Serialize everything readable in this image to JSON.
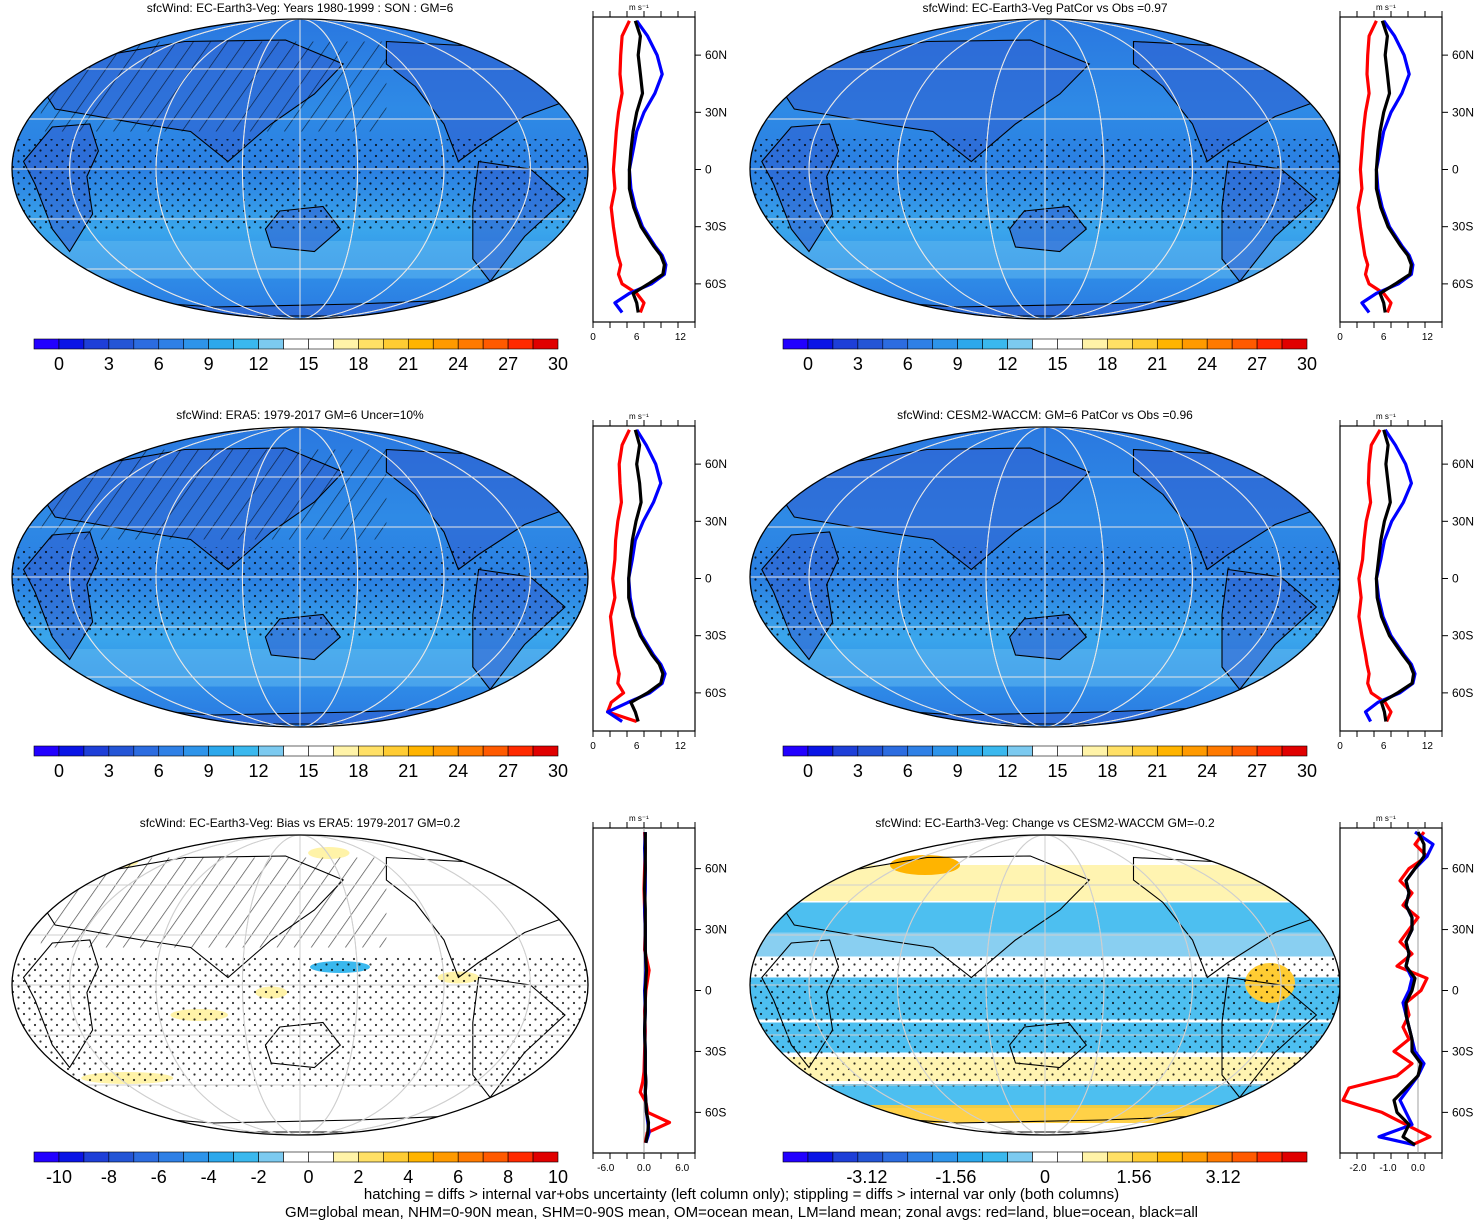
{
  "footer": {
    "line1": "hatching = diffs > internal var+obs uncertainty (left column only); stippling = diffs > internal var only (both columns)",
    "line2": "GM=global mean, NHM=0-90N mean, SHM=0-90S mean, OM=ocean mean, LM=land mean; zonal avgs: red=land, blue=ocean, black=all"
  },
  "colors": {
    "land": "#ff0000",
    "ocean": "#0000ff",
    "all": "#000000",
    "map_base": "#2e8de8",
    "coast": "#000000",
    "grid": "#dddddd"
  },
  "chart_data": [
    {
      "type": "heatmap",
      "title": "sfcWind: EC-Earth3-Veg: Years 1980-1999 : SON : GM=6",
      "colorbar": {
        "ticks": [
          "0",
          "3",
          "6",
          "9",
          "12",
          "15",
          "18",
          "21",
          "24",
          "27",
          "30"
        ],
        "palette": [
          "#2200ff",
          "#0a14e6",
          "#1e3fd8",
          "#2455d6",
          "#2c6ce0",
          "#2f80e6",
          "#2e94ea",
          "#2ca8ec",
          "#3ab8ee",
          "#7ccaf0",
          "#ffffff",
          "#ffffff",
          "#fff3a8",
          "#ffe066",
          "#ffcc33",
          "#ffb400",
          "#ff9a00",
          "#ff7a00",
          "#ff5a00",
          "#ff2a00",
          "#e00000"
        ]
      },
      "zonal": {
        "unit": "m s-1",
        "xticks": [
          "0",
          "6",
          "12"
        ],
        "xlim": [
          0,
          14
        ],
        "yticks": [
          "60N",
          "30N",
          "0",
          "30S",
          "60S"
        ],
        "ylim": [
          -80,
          80
        ],
        "lat": [
          78,
          70,
          60,
          50,
          40,
          30,
          20,
          10,
          0,
          -10,
          -20,
          -30,
          -40,
          -45,
          -50,
          -55,
          -60,
          -65,
          -70,
          -75
        ],
        "land": [
          5,
          4,
          3.8,
          3.7,
          4,
          3.5,
          3.2,
          3,
          2.8,
          3,
          2.5,
          2.8,
          3.2,
          3.4,
          3.8,
          3.5,
          4,
          6,
          7,
          6.5
        ],
        "ocean": [
          6,
          7.5,
          8.8,
          9.5,
          8.5,
          7,
          6,
          5.5,
          5,
          5.2,
          5.8,
          6.8,
          8.5,
          9.5,
          10,
          9.8,
          8,
          5,
          3,
          4
        ],
        "all": [
          5.8,
          6.5,
          6.2,
          6.5,
          6.8,
          6,
          5.5,
          5.2,
          5,
          5,
          5.6,
          6.6,
          8.3,
          9.3,
          9.8,
          9.6,
          7.6,
          5.5,
          6,
          6.2
        ]
      }
    },
    {
      "type": "heatmap",
      "title": "sfcWind: EC-Earth3-Veg PatCor vs Obs =0.97",
      "colorbar": {
        "ticks": [
          "0",
          "3",
          "6",
          "9",
          "12",
          "15",
          "18",
          "21",
          "24",
          "27",
          "30"
        ],
        "palette": [
          "#2200ff",
          "#0a14e6",
          "#1e3fd8",
          "#2455d6",
          "#2c6ce0",
          "#2f80e6",
          "#2e94ea",
          "#2ca8ec",
          "#3ab8ee",
          "#7ccaf0",
          "#ffffff",
          "#ffffff",
          "#fff3a8",
          "#ffe066",
          "#ffcc33",
          "#ffb400",
          "#ff9a00",
          "#ff7a00",
          "#ff5a00",
          "#ff2a00",
          "#e00000"
        ]
      },
      "zonal": {
        "unit": "m s-1",
        "xticks": [
          "0",
          "6",
          "12"
        ],
        "xlim": [
          0,
          14
        ],
        "yticks": [
          "60N",
          "30N",
          "0",
          "30S",
          "60S"
        ],
        "ylim": [
          -80,
          80
        ],
        "lat": [
          78,
          70,
          60,
          50,
          40,
          30,
          20,
          10,
          0,
          -10,
          -20,
          -30,
          -40,
          -45,
          -50,
          -55,
          -60,
          -65,
          -70,
          -75
        ],
        "land": [
          5,
          4,
          3.8,
          3.7,
          4,
          3.5,
          3.2,
          3,
          2.8,
          3,
          2.5,
          2.8,
          3.2,
          3.4,
          3.8,
          3.5,
          4,
          6,
          7,
          6.5
        ],
        "ocean": [
          6,
          7.5,
          8.8,
          9.5,
          8.5,
          7,
          6,
          5.5,
          5,
          5.2,
          5.8,
          6.8,
          8.5,
          9.5,
          10,
          9.8,
          8,
          5,
          3,
          4
        ],
        "all": [
          5.8,
          6.5,
          6.2,
          6.5,
          6.8,
          6,
          5.5,
          5.2,
          5,
          5,
          5.6,
          6.6,
          8.3,
          9.3,
          9.8,
          9.6,
          7.6,
          5.5,
          6,
          6.2
        ]
      }
    },
    {
      "type": "heatmap",
      "title": "sfcWind: ERA5: 1979-2017 GM=6 Uncer=10%",
      "colorbar": {
        "ticks": [
          "0",
          "3",
          "6",
          "9",
          "12",
          "15",
          "18",
          "21",
          "24",
          "27",
          "30"
        ],
        "palette": [
          "#2200ff",
          "#0a14e6",
          "#1e3fd8",
          "#2455d6",
          "#2c6ce0",
          "#2f80e6",
          "#2e94ea",
          "#2ca8ec",
          "#3ab8ee",
          "#7ccaf0",
          "#ffffff",
          "#ffffff",
          "#fff3a8",
          "#ffe066",
          "#ffcc33",
          "#ffb400",
          "#ff9a00",
          "#ff7a00",
          "#ff5a00",
          "#ff2a00",
          "#e00000"
        ]
      },
      "zonal": {
        "unit": "m s-1",
        "xticks": [
          "0",
          "6",
          "12"
        ],
        "xlim": [
          0,
          14
        ],
        "yticks": [
          "60N",
          "30N",
          "0",
          "30S",
          "60S"
        ],
        "ylim": [
          -80,
          80
        ],
        "lat": [
          78,
          70,
          60,
          50,
          40,
          30,
          20,
          10,
          0,
          -10,
          -20,
          -30,
          -40,
          -45,
          -50,
          -55,
          -60,
          -65,
          -70,
          -75
        ],
        "land": [
          5,
          4,
          3.6,
          3.7,
          3.9,
          3.4,
          3.1,
          3,
          2.7,
          3,
          2.4,
          2.7,
          3,
          3.3,
          3.6,
          3.4,
          4.2,
          2.5,
          2,
          6
        ],
        "ocean": [
          6,
          7.3,
          8.6,
          9.3,
          8.3,
          6.9,
          5.8,
          5.4,
          4.9,
          5.1,
          5.6,
          6.7,
          8.3,
          9.3,
          9.9,
          9.5,
          7.8,
          4.8,
          2,
          4
        ],
        "all": [
          5.8,
          6.4,
          6,
          6.4,
          6.6,
          5.9,
          5.4,
          5.1,
          4.9,
          4.9,
          5.5,
          6.5,
          8.1,
          9.1,
          9.6,
          9.3,
          7.5,
          5.2,
          5.8,
          6.2
        ]
      }
    },
    {
      "type": "heatmap",
      "title": "sfcWind: CESM2-WACCM: GM=6 PatCor vs Obs =0.96",
      "colorbar": {
        "ticks": [
          "0",
          "3",
          "6",
          "9",
          "12",
          "15",
          "18",
          "21",
          "24",
          "27",
          "30"
        ],
        "palette": [
          "#2200ff",
          "#0a14e6",
          "#1e3fd8",
          "#2455d6",
          "#2c6ce0",
          "#2f80e6",
          "#2e94ea",
          "#2ca8ec",
          "#3ab8ee",
          "#7ccaf0",
          "#ffffff",
          "#ffffff",
          "#fff3a8",
          "#ffe066",
          "#ffcc33",
          "#ffb400",
          "#ff9a00",
          "#ff7a00",
          "#ff5a00",
          "#ff2a00",
          "#e00000"
        ]
      },
      "zonal": {
        "unit": "m s-1",
        "xticks": [
          "0",
          "6",
          "12"
        ],
        "xlim": [
          0,
          14
        ],
        "yticks": [
          "60N",
          "30N",
          "0",
          "30S",
          "60S"
        ],
        "ylim": [
          -80,
          80
        ],
        "lat": [
          78,
          70,
          60,
          50,
          40,
          30,
          20,
          10,
          0,
          -10,
          -20,
          -30,
          -40,
          -45,
          -50,
          -55,
          -60,
          -65,
          -70,
          -75
        ],
        "land": [
          5.5,
          4.3,
          4,
          3.9,
          4.2,
          3.6,
          3.3,
          3.1,
          2.6,
          2.9,
          2.6,
          3,
          3.5,
          3.7,
          4,
          3.8,
          4.3,
          6.2,
          7,
          6.4
        ],
        "ocean": [
          6.2,
          7.6,
          9,
          9.8,
          8.7,
          7.1,
          6.1,
          5.6,
          5,
          5.3,
          5.9,
          7,
          8.8,
          9.8,
          10.3,
          10,
          8.2,
          5.2,
          3.5,
          4.2
        ],
        "all": [
          6,
          6.6,
          6.3,
          6.6,
          6.9,
          6.1,
          5.6,
          5.3,
          5,
          5.1,
          5.7,
          6.8,
          8.6,
          9.6,
          10.1,
          9.9,
          7.9,
          5.7,
          6.1,
          6.3
        ]
      }
    },
    {
      "type": "heatmap",
      "title": "sfcWind: EC-Earth3-Veg: Bias vs ERA5: 1979-2017  GM=0.2",
      "colorbar": {
        "ticks": [
          "-10",
          "-8",
          "-6",
          "-4",
          "-2",
          "0",
          "2",
          "4",
          "6",
          "8",
          "10"
        ],
        "palette": [
          "#2200ff",
          "#0a14e6",
          "#1e3fd8",
          "#2455d6",
          "#2c6ce0",
          "#2f80e6",
          "#2e94ea",
          "#2ca8ec",
          "#3ab8ee",
          "#7ccaf0",
          "#ffffff",
          "#ffffff",
          "#fff3a8",
          "#ffe066",
          "#ffcc33",
          "#ffb400",
          "#ff9a00",
          "#ff7a00",
          "#ff5a00",
          "#ff2a00",
          "#e00000"
        ]
      },
      "zonal": {
        "unit": "m s-1",
        "xticks": [
          "-6.0",
          "0.0",
          "6.0"
        ],
        "xlim": [
          -8,
          8
        ],
        "yticks": [
          "60N",
          "30N",
          "0",
          "30S",
          "60S"
        ],
        "ylim": [
          -80,
          80
        ],
        "lat": [
          78,
          70,
          60,
          50,
          40,
          30,
          20,
          10,
          0,
          -10,
          -20,
          -30,
          -40,
          -45,
          -50,
          -55,
          -60,
          -65,
          -70,
          -75
        ],
        "land": [
          0.1,
          0.2,
          0.1,
          0,
          0.1,
          0.2,
          0.1,
          0.8,
          0.3,
          0.1,
          0.2,
          0.1,
          0,
          -0.2,
          -0.6,
          0.3,
          0.6,
          4,
          0.5,
          0.2
        ],
        "ocean": [
          0.2,
          0.1,
          0.2,
          0.2,
          0.1,
          0.2,
          0.2,
          0.3,
          0.1,
          0.2,
          0.1,
          0.2,
          0.2,
          0.3,
          0.2,
          0.3,
          0.4,
          0.6,
          0.8,
          0.3
        ],
        "all": [
          0.2,
          0.2,
          0.2,
          0.1,
          0.2,
          0.2,
          0.2,
          0.4,
          0.2,
          0.2,
          0.1,
          0.2,
          0.2,
          0.3,
          0.2,
          0.3,
          0.4,
          0.7,
          0.6,
          0.3
        ]
      }
    },
    {
      "type": "heatmap",
      "title": "sfcWind: EC-Earth3-Veg: Change vs CESM2-WACCM GM=-0.2",
      "colorbar": {
        "ticks": [
          "-3.12",
          "-1.56",
          "0",
          "1.56",
          "3.12"
        ],
        "palette": [
          "#2200ff",
          "#0a14e6",
          "#1e3fd8",
          "#2455d6",
          "#2c6ce0",
          "#2f80e6",
          "#2e94ea",
          "#2ca8ec",
          "#3ab8ee",
          "#7ccaf0",
          "#ffffff",
          "#ffffff",
          "#fff3a8",
          "#ffe066",
          "#ffcc33",
          "#ffb400",
          "#ff9a00",
          "#ff7a00",
          "#ff5a00",
          "#ff2a00",
          "#e00000"
        ]
      },
      "zonal": {
        "unit": "m s-1",
        "xticks": [
          "-2.0",
          "-1.0",
          "0.0"
        ],
        "xlim": [
          -2.6,
          0.8
        ],
        "yticks": [
          "60N",
          "30N",
          "0",
          "30S",
          "60S"
        ],
        "ylim": [
          -80,
          80
        ],
        "lat": [
          78,
          72,
          66,
          60,
          54,
          48,
          42,
          36,
          30,
          24,
          18,
          12,
          6,
          0,
          -6,
          -12,
          -18,
          -24,
          -30,
          -36,
          -42,
          -48,
          -54,
          -60,
          -66,
          -72,
          -76
        ],
        "land": [
          0.2,
          -0.1,
          0.3,
          -0.3,
          -0.6,
          -0.2,
          -0.5,
          0,
          -0.3,
          -0.6,
          -0.2,
          -0.7,
          0.3,
          0.1,
          -0.4,
          -0.3,
          -0.5,
          -0.3,
          -0.8,
          -0.2,
          -0.7,
          -2.3,
          -2.5,
          -1.2,
          -0.4,
          0.4,
          -0.2
        ],
        "ocean": [
          -0.1,
          0.5,
          0.3,
          -0.1,
          -0.4,
          -0.3,
          -0.4,
          -0.2,
          -0.2,
          -0.4,
          -0.3,
          -0.4,
          -0.2,
          -0.3,
          -0.5,
          -0.4,
          -0.3,
          -0.2,
          -0.1,
          0.2,
          0,
          -0.3,
          -0.6,
          -0.4,
          -0.2,
          -1.3,
          -0.1
        ],
        "all": [
          0,
          0.2,
          0.2,
          -0.1,
          -0.4,
          -0.3,
          -0.4,
          -0.2,
          -0.2,
          -0.4,
          -0.3,
          -0.4,
          -0.1,
          -0.2,
          -0.4,
          -0.4,
          -0.3,
          -0.2,
          -0.2,
          0.1,
          0,
          -0.4,
          -0.8,
          -0.7,
          -0.3,
          -0.5,
          -0.1
        ]
      }
    }
  ]
}
